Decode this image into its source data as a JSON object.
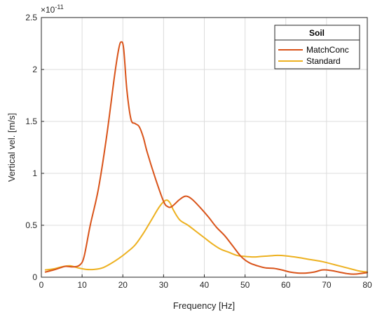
{
  "chart_data": {
    "type": "line",
    "title": "",
    "xlabel": "Frequency [Hz]",
    "ylabel": "Vertical vel. [m/s]",
    "xlim": [
      0,
      80
    ],
    "ylim": [
      0,
      2.5
    ],
    "y_exponent_label": "×10",
    "y_exponent_power": "-11",
    "xticks": [
      0,
      10,
      20,
      30,
      40,
      50,
      60,
      70,
      80
    ],
    "xtick_labels": [
      "0",
      "10",
      "20",
      "30",
      "40",
      "50",
      "60",
      "70",
      "80"
    ],
    "yticks": [
      0,
      0.5,
      1,
      1.5,
      2,
      2.5
    ],
    "ytick_labels": [
      "0",
      "0.5",
      "1",
      "1.5",
      "2",
      "2.5"
    ],
    "grid": true,
    "legend": {
      "title": "Soil",
      "position": "top-right"
    },
    "series": [
      {
        "name": "MatchConc",
        "color": "#D95319",
        "x": [
          1,
          3,
          5,
          6,
          8,
          9.5,
          10.5,
          12,
          14,
          16,
          18,
          19,
          19.6,
          20.2,
          21,
          22,
          23,
          24,
          25,
          26,
          28,
          30,
          31,
          32,
          34,
          35.5,
          37,
          39,
          41,
          43,
          45,
          47,
          49,
          51,
          53,
          55,
          57,
          59,
          61,
          63,
          65,
          67,
          69,
          71,
          73,
          75,
          77,
          80
        ],
        "y": [
          0.05,
          0.07,
          0.095,
          0.105,
          0.1,
          0.12,
          0.2,
          0.5,
          0.85,
          1.35,
          1.95,
          2.2,
          2.265,
          2.2,
          1.8,
          1.52,
          1.48,
          1.45,
          1.35,
          1.2,
          0.95,
          0.73,
          0.68,
          0.68,
          0.75,
          0.78,
          0.75,
          0.67,
          0.58,
          0.48,
          0.4,
          0.3,
          0.2,
          0.14,
          0.11,
          0.09,
          0.085,
          0.07,
          0.05,
          0.04,
          0.04,
          0.05,
          0.07,
          0.065,
          0.05,
          0.035,
          0.03,
          0.045
        ]
      },
      {
        "name": "Standard",
        "color": "#EDB120",
        "x": [
          1,
          3,
          5,
          7,
          9,
          11,
          13,
          15,
          17,
          19,
          21,
          23,
          25,
          27,
          29,
          30.5,
          31.5,
          32.5,
          34,
          36,
          38,
          40,
          42,
          44,
          46,
          48,
          50,
          52,
          54,
          56,
          58,
          60,
          63,
          66,
          69,
          72,
          75,
          78,
          80
        ],
        "y": [
          0.07,
          0.08,
          0.1,
          0.11,
          0.09,
          0.075,
          0.075,
          0.09,
          0.13,
          0.18,
          0.24,
          0.31,
          0.42,
          0.55,
          0.68,
          0.74,
          0.72,
          0.64,
          0.55,
          0.5,
          0.44,
          0.38,
          0.32,
          0.27,
          0.24,
          0.21,
          0.2,
          0.195,
          0.2,
          0.205,
          0.21,
          0.205,
          0.19,
          0.17,
          0.15,
          0.12,
          0.09,
          0.06,
          0.05
        ]
      }
    ]
  }
}
